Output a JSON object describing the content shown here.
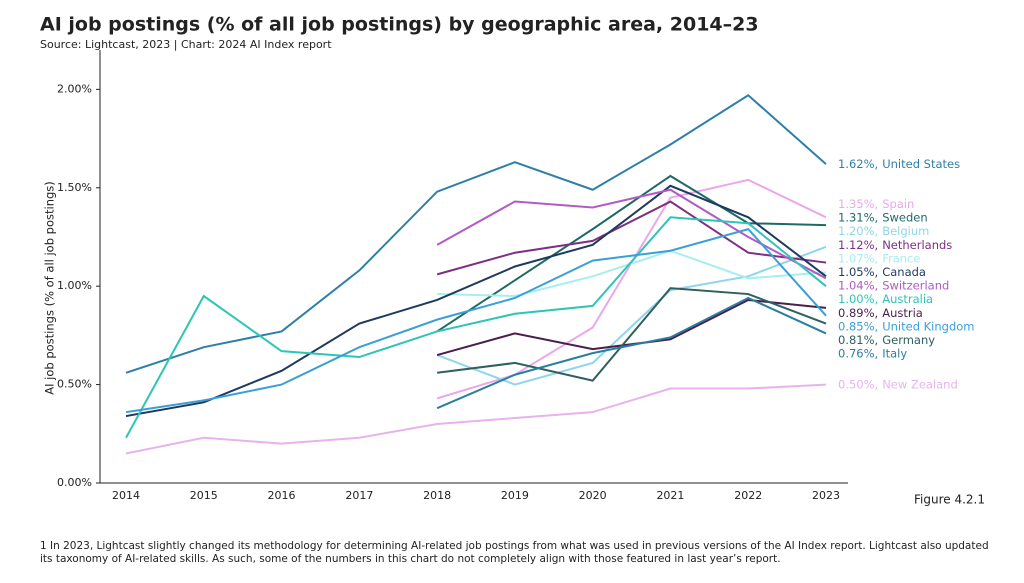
{
  "chart_data": {
    "type": "line",
    "title": "AI job postings (% of all job postings) by geographic area, 2014–23",
    "subtitle": "Source: Lightcast, 2023 | Chart: 2024 AI Index report",
    "y_label": "AI job postings (% of all job postings)",
    "figure_label": "Figure 4.2.1",
    "footnote": "1 In 2023, Lightcast slightly changed its methodology for determining AI-related job postings from what was used in previous versions of the AI Index report. Lightcast also updated its taxonomy of AI-related skills. As such, some of the numbers in this chart do not completely align with those featured in last year’s report.",
    "categories": [
      "2014",
      "2015",
      "2016",
      "2017",
      "2018",
      "2019",
      "2020",
      "2021",
      "2022",
      "2023"
    ],
    "ylim": [
      0,
      2.2
    ],
    "yticks": [
      {
        "value": 0,
        "label": "0.00%"
      },
      {
        "value": 0.5,
        "label": "0.50%"
      },
      {
        "value": 1,
        "label": "1.00%"
      },
      {
        "value": 1.5,
        "label": "1.50%"
      },
      {
        "value": 2,
        "label": "2.00%"
      }
    ],
    "grid": false,
    "series": [
      {
        "name": "United States",
        "color": "#2e7fa8",
        "values": [
          0.56,
          0.69,
          0.77,
          1.08,
          1.48,
          1.63,
          1.49,
          1.72,
          1.97,
          1.62
        ],
        "value_labels": [
          null,
          null,
          null,
          null,
          null,
          null,
          null,
          null,
          null,
          "1.62%,"
        ]
      },
      {
        "name": "Spain",
        "color": "#eaa8ea",
        "values": [
          null,
          null,
          null,
          null,
          0.43,
          0.55,
          0.79,
          1.45,
          1.54,
          1.35
        ],
        "value_labels": [
          null,
          null,
          null,
          null,
          null,
          null,
          null,
          null,
          null,
          "1.35%,"
        ]
      },
      {
        "name": "Sweden",
        "color": "#1f6a66",
        "values": [
          null,
          null,
          null,
          null,
          0.77,
          1.03,
          1.29,
          1.56,
          1.32,
          1.31
        ],
        "value_labels": [
          null,
          null,
          null,
          null,
          null,
          null,
          null,
          null,
          null,
          "1.31%,"
        ]
      },
      {
        "name": "Belgium",
        "color": "#8fd5ec",
        "values": [
          null,
          null,
          null,
          null,
          0.65,
          0.5,
          0.61,
          0.98,
          1.05,
          1.2
        ],
        "value_labels": [
          null,
          null,
          null,
          null,
          null,
          null,
          null,
          null,
          null,
          "1.20%,"
        ]
      },
      {
        "name": "Netherlands",
        "color": "#7e2f82",
        "values": [
          null,
          null,
          null,
          null,
          1.06,
          1.17,
          1.23,
          1.43,
          1.17,
          1.12
        ],
        "value_labels": [
          null,
          null,
          null,
          null,
          null,
          null,
          null,
          null,
          null,
          "1.12%,"
        ]
      },
      {
        "name": "France",
        "color": "#a6eef0",
        "values": [
          null,
          null,
          null,
          null,
          0.96,
          0.95,
          1.05,
          1.18,
          1.04,
          1.07
        ],
        "value_labels": [
          null,
          null,
          null,
          null,
          null,
          null,
          null,
          null,
          null,
          "1.07%,"
        ]
      },
      {
        "name": "Canada",
        "color": "#1f3a5f",
        "values": [
          0.34,
          0.41,
          0.57,
          0.81,
          0.93,
          1.1,
          1.21,
          1.51,
          1.35,
          1.05
        ],
        "value_labels": [
          null,
          null,
          null,
          null,
          null,
          null,
          null,
          null,
          null,
          "1.05%,"
        ]
      },
      {
        "name": "Switzerland",
        "color": "#b05cc4",
        "values": [
          null,
          null,
          null,
          null,
          1.21,
          1.43,
          1.4,
          1.49,
          1.25,
          1.04
        ],
        "value_labels": [
          null,
          null,
          null,
          null,
          null,
          null,
          null,
          null,
          null,
          "1.04%,"
        ]
      },
      {
        "name": "Australia",
        "color": "#2ec4b6",
        "values": [
          0.23,
          0.95,
          0.67,
          0.64,
          0.77,
          0.86,
          0.9,
          1.35,
          1.32,
          1.0
        ],
        "value_labels": [
          null,
          null,
          null,
          null,
          null,
          null,
          null,
          null,
          null,
          "1.00%,"
        ]
      },
      {
        "name": "Austria",
        "color": "#4a1f4f",
        "values": [
          null,
          null,
          null,
          null,
          0.65,
          0.76,
          0.68,
          0.73,
          0.93,
          0.89
        ],
        "value_labels": [
          null,
          null,
          null,
          null,
          null,
          null,
          null,
          null,
          null,
          "0.89%,"
        ]
      },
      {
        "name": "United Kingdom",
        "color": "#3a9fd6",
        "values": [
          0.36,
          0.42,
          0.5,
          0.69,
          0.83,
          0.94,
          1.13,
          1.18,
          1.29,
          0.85
        ],
        "value_labels": [
          null,
          null,
          null,
          null,
          null,
          null,
          null,
          null,
          null,
          "0.85%,"
        ]
      },
      {
        "name": "Germany",
        "color": "#2f5f5f",
        "values": [
          null,
          null,
          null,
          null,
          0.56,
          0.61,
          0.52,
          0.99,
          0.96,
          0.81
        ],
        "value_labels": [
          null,
          null,
          null,
          null,
          null,
          null,
          null,
          null,
          null,
          "0.81%,"
        ]
      },
      {
        "name": "Italy",
        "color": "#2a7fa0",
        "values": [
          null,
          null,
          null,
          null,
          0.38,
          0.55,
          0.66,
          0.74,
          0.94,
          0.76
        ],
        "value_labels": [
          null,
          null,
          null,
          null,
          null,
          null,
          null,
          null,
          null,
          "0.76%,"
        ]
      },
      {
        "name": "New Zealand",
        "color": "#e7b3ec",
        "values": [
          0.15,
          0.23,
          0.2,
          0.23,
          0.3,
          0.33,
          0.36,
          0.48,
          0.48,
          0.5
        ],
        "value_labels": [
          null,
          null,
          null,
          null,
          null,
          null,
          null,
          null,
          null,
          "0.50%,"
        ]
      }
    ]
  }
}
